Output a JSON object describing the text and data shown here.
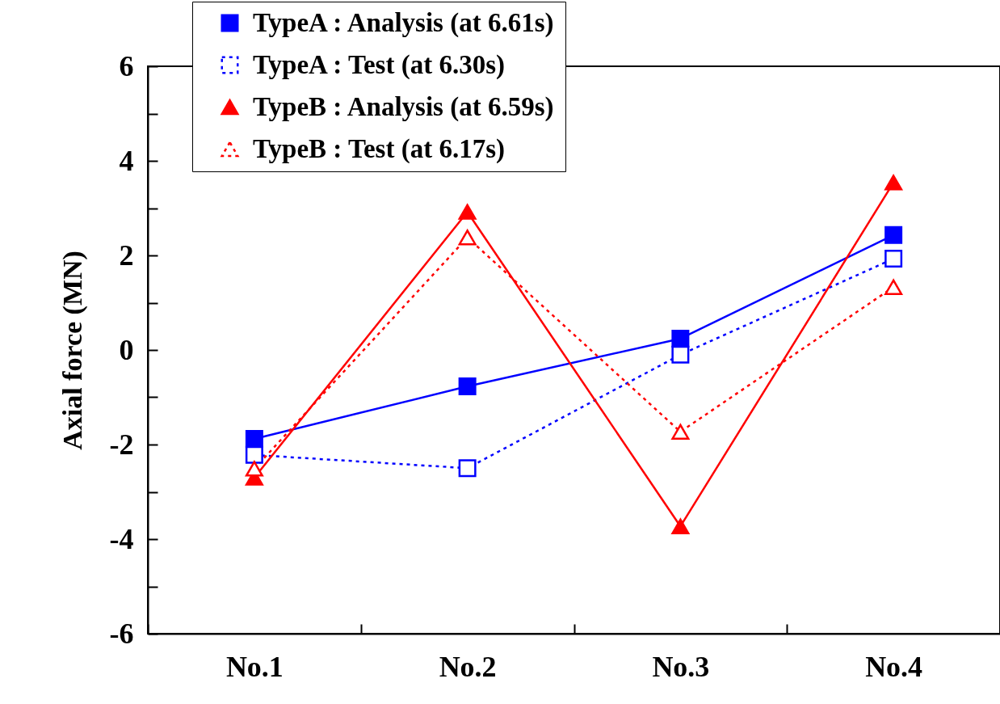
{
  "chart_data": {
    "type": "line",
    "ylabel": "Axial force  (MN)",
    "categories": [
      "No.1",
      "No.2",
      "No.3",
      "No.4"
    ],
    "series": [
      {
        "name": "TypeA : Analysis (at 6.61s)",
        "color": "#0000ff",
        "marker": "square",
        "line_style": "solid",
        "values": [
          -1.88,
          -0.77,
          0.24,
          2.43
        ]
      },
      {
        "name": "TypeA : Test (at 6.30s)",
        "color": "#0000ff",
        "marker": "square",
        "line_style": "dotted",
        "values": [
          -2.22,
          -2.5,
          -0.1,
          1.93
        ]
      },
      {
        "name": "TypeB : Analysis (at 6.59s)",
        "color": "#ff0000",
        "marker": "triangle",
        "line_style": "solid",
        "values": [
          -2.7,
          2.92,
          -3.73,
          3.54
        ]
      },
      {
        "name": "TypeB : Test (at 6.17s)",
        "color": "#ff0000",
        "marker": "triangle",
        "line_style": "dotted",
        "values": [
          -2.51,
          2.38,
          -1.73,
          1.33
        ]
      }
    ],
    "ylim": [
      -6,
      6
    ],
    "yticks": [
      -6,
      {
        "value": -5,
        "label": null
      },
      -4,
      {
        "value": -3,
        "label": null
      },
      -2,
      {
        "value": -1,
        "label": null
      },
      0,
      {
        "value": 1,
        "label": null
      },
      2,
      {
        "value": 3,
        "label": null
      },
      4,
      {
        "value": 5,
        "label": null
      },
      6
    ],
    "grid": false,
    "legend": "top"
  }
}
